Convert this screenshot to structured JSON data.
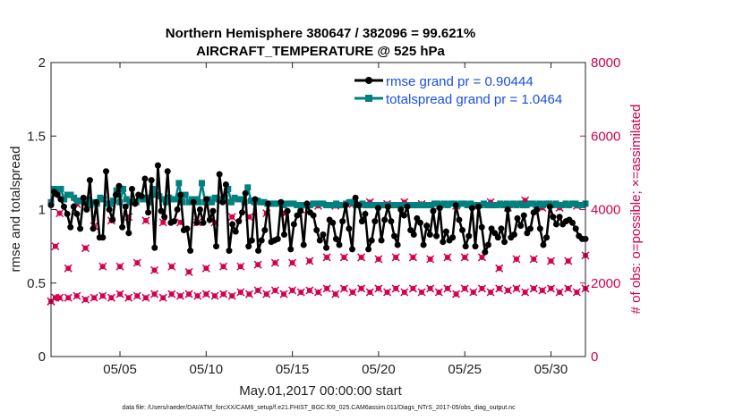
{
  "chart_data": {
    "type": "line",
    "title_line1": "Northern Hemisphere 380647 / 382096 = 99.621%",
    "title_line2": "AIRCRAFT_TEMPERATURE @ 525 hPa",
    "xlabel": "May.01,2017 00:00:00 start",
    "ylabel_left": "rmse and totalspread",
    "ylabel_right": "# of obs: o=possible; ×=assimilated",
    "footnote": "data file: /Users/raeder/DAI/ATM_forcXX/CAM6_setup/f.e21.FHIST_BGC.f09_025.CAM6assim.011/Diags_NTrS_2017-05/obs_diag_output.nc",
    "xlim": [
      1,
      32
    ],
    "ylim_left": [
      0,
      2
    ],
    "ylim_right": [
      0,
      8000
    ],
    "xticks": [
      5,
      10,
      15,
      20,
      25,
      30
    ],
    "xtick_labels": [
      "05/05",
      "05/10",
      "05/15",
      "05/20",
      "05/25",
      "05/30"
    ],
    "yticks_left": [
      0,
      0.5,
      1,
      1.5,
      2
    ],
    "ytick_labels_left": [
      "0",
      "0.5",
      "1",
      "1.5",
      "2"
    ],
    "yticks_right": [
      0,
      2000,
      4000,
      6000,
      8000
    ],
    "ytick_labels_right": [
      "0",
      "2000",
      "4000",
      "6000",
      "8000"
    ],
    "colors": {
      "rmse": "#000000",
      "spread": "#00807f",
      "obs": "#d4004f",
      "legend_text": "#1a4fe0",
      "right_axis": "#d0004e"
    },
    "series": [
      {
        "name": "rmse grand pr = 0.90444",
        "axis": "left",
        "values": [
          1.03,
          1.12,
          1.1,
          1.07,
          1.02,
          0.97,
          0.88,
          1.02,
          0.97,
          0.87,
          1.08,
          1.0,
          1.2,
          0.87,
          1.05,
          0.81,
          0.81,
          1.26,
          1.0,
          0.93,
          1.1,
          1.16,
          0.88,
          1.02,
          0.84,
          1.14,
          1.04,
          1.1,
          1.09,
          1.21,
          0.98,
          1.2,
          0.74,
          1.3,
          0.99,
          0.95,
          1.26,
          0.91,
          0.92,
          1.0,
          1.1,
          0.86,
          0.87,
          0.72,
          1.05,
          0.91,
          1.0,
          0.91,
          1.07,
          0.93,
          0.99,
          0.75,
          1.24,
          1.05,
          1.17,
          0.72,
          0.9,
          0.85,
          0.92,
          0.98,
          1.11,
          0.75,
          0.79,
          1.07,
          0.72,
          0.79,
          0.86,
          1.04,
          0.78,
          0.79,
          0.8,
          1.05,
          0.83,
          0.99,
          0.73,
          0.9,
          0.96,
          0.99,
          0.76,
          1.04,
          0.98,
          0.96,
          0.86,
          0.79,
          0.83,
          0.74,
          0.93,
          0.91,
          0.8,
          0.76,
          0.92,
          1.03,
          0.87,
          0.73,
          1.08,
          1.03,
          0.92,
          0.97,
          0.73,
          0.79,
          0.92,
          1.01,
          0.79,
          0.93,
          1.02,
          0.92,
          0.82,
          0.76,
          1.0,
          0.96,
          1.02,
          0.86,
          0.83,
          0.94,
          0.91,
          0.76,
          0.89,
          0.83,
          0.99,
          0.82,
          1.01,
          0.78,
          0.85,
          0.79,
          0.81,
          1.03,
          0.93,
          0.86,
          0.75,
          0.82,
          1.01,
          0.75,
          1.02,
          0.88,
          0.71,
          0.76,
          0.87,
          0.84,
          0.81,
          0.87,
          0.78,
          1.0,
          0.81,
          0.83,
          0.94,
          0.89,
          0.96,
          0.84,
          0.87,
          0.98,
          1.0,
          0.87,
          0.76,
          0.81,
          1.02,
          0.95,
          0.9,
          0.95,
          0.9,
          0.92,
          0.93,
          0.91,
          0.87,
          0.82,
          0.8,
          0.8
        ]
      },
      {
        "name": "totalspread grand pr = 1.0464",
        "axis": "left",
        "values": [
          1.05,
          1.14,
          1.13,
          1.14,
          1.07,
          1.1,
          1.1,
          1.08,
          1.06,
          1.06,
          1.05,
          1.07,
          1.03,
          1.05,
          1.04,
          1.08,
          1.07,
          1.04,
          1.04,
          1.06,
          1.13,
          1.05,
          1.14,
          1.07,
          1.05,
          1.05,
          1.05,
          1.09,
          1.07,
          1.08,
          1.05,
          1.14,
          1.1,
          1.09,
          1.07,
          1.05,
          1.08,
          1.07,
          1.07,
          1.18,
          1.05,
          1.1,
          1.05,
          1.07,
          1.07,
          1.05,
          1.18,
          1.05,
          1.07,
          1.05,
          1.08,
          1.07,
          1.06,
          1.08,
          1.14,
          1.05,
          1.08,
          1.07,
          1.07,
          1.05,
          1.15,
          1.06,
          1.05,
          1.06,
          1.05,
          1.05,
          1.04,
          1.04,
          1.04,
          1.04,
          1.04,
          1.03,
          1.04,
          1.04,
          1.04,
          1.03,
          1.03,
          1.03,
          1.03,
          1.03,
          1.04,
          1.04,
          1.04,
          1.04,
          1.03,
          1.03,
          1.03,
          1.04,
          1.03,
          1.03,
          1.04,
          1.05,
          1.05,
          1.03,
          1.03,
          1.04,
          1.03,
          1.03,
          1.03,
          1.03,
          1.03,
          1.03,
          1.03,
          1.03,
          1.03,
          1.03,
          1.03,
          1.03,
          1.03,
          1.03,
          1.03,
          1.03,
          1.03,
          1.03,
          1.03,
          1.03,
          1.03,
          1.04,
          1.04,
          1.03,
          1.04,
          1.03,
          1.04,
          1.04,
          1.03,
          1.04,
          1.04,
          1.03,
          1.04,
          1.03,
          1.03,
          1.03,
          1.04,
          1.03,
          1.03,
          1.03,
          1.03,
          1.04,
          1.03,
          1.04,
          1.03,
          1.04,
          1.03,
          1.04,
          1.03,
          1.03,
          1.04,
          1.04,
          1.03,
          1.04,
          1.03,
          1.04,
          1.04,
          1.03,
          1.04,
          1.03,
          1.03,
          1.04,
          1.03,
          1.04,
          1.04,
          1.03,
          1.03,
          1.04
        ]
      },
      {
        "name": "obs possible",
        "axis": "right",
        "x": [
          1.0,
          1.25,
          1.5,
          2.0,
          2.5,
          3.0,
          3.5,
          4.0,
          4.5,
          5.0,
          5.5,
          6.0,
          6.5,
          7.0,
          7.5,
          8.0,
          8.5,
          9.0,
          9.5,
          10.0,
          10.5,
          11.0,
          11.5,
          12.0,
          12.5,
          13.0,
          13.5,
          14.0,
          14.5,
          15.0,
          15.5,
          16.0,
          16.5,
          17.0,
          17.5,
          18.0,
          18.5,
          19.0,
          19.5,
          20.0,
          20.5,
          21.0,
          21.5,
          22.0,
          22.5,
          23.0,
          23.5,
          24.0,
          24.5,
          25.0,
          25.5,
          26.0,
          26.5,
          27.0,
          27.5,
          28.0,
          28.5,
          29.0,
          29.5,
          30.0,
          30.5,
          31.0,
          31.5,
          32.0
        ],
        "values": [
          1500,
          3000,
          3900,
          2400,
          4150,
          2950,
          3550,
          2450,
          3700,
          2450,
          3800,
          2550,
          3700,
          2350,
          3650,
          2450,
          3650,
          2300,
          3650,
          2400,
          3650,
          2450,
          3800,
          2450,
          3800,
          2500,
          3900,
          2550,
          3900,
          2550,
          4000,
          2600,
          4100,
          2700,
          4100,
          2700,
          4150,
          2700,
          4200,
          2650,
          4150,
          2700,
          4200,
          2700,
          4150,
          2650,
          4100,
          2700,
          4100,
          2700,
          4100,
          2700,
          4200,
          2400,
          4050,
          2650,
          4250,
          2650,
          4050,
          2600,
          4050,
          2600,
          4100,
          2750
        ]
      },
      {
        "name": "obs assimilated",
        "axis": "right",
        "x": [
          1.0,
          1.25,
          1.5,
          2.0,
          2.5,
          3.0,
          3.5,
          4.0,
          4.5,
          5.0,
          5.5,
          6.0,
          6.5,
          7.0,
          7.5,
          8.0,
          8.5,
          9.0,
          9.5,
          10.0,
          10.5,
          11.0,
          11.5,
          12.0,
          12.5,
          13.0,
          13.5,
          14.0,
          14.5,
          15.0,
          15.5,
          16.0,
          16.5,
          17.0,
          17.5,
          18.0,
          18.5,
          19.0,
          19.5,
          20.0,
          20.5,
          21.0,
          21.5,
          22.0,
          22.5,
          23.0,
          23.5,
          24.0,
          24.5,
          25.0,
          25.5,
          26.0,
          26.5,
          27.0,
          27.5,
          28.0,
          28.5,
          29.0,
          29.5,
          30.0,
          30.5,
          31.0,
          31.5,
          32.0
        ],
        "values": [
          1500,
          1600,
          1600,
          1600,
          1650,
          1550,
          1600,
          1650,
          1600,
          1700,
          1600,
          1650,
          1600,
          1700,
          1600,
          1700,
          1650,
          1700,
          1650,
          1700,
          1650,
          1700,
          1650,
          1750,
          1700,
          1800,
          1700,
          1800,
          1700,
          1800,
          1750,
          1800,
          1750,
          1850,
          1700,
          1850,
          1750,
          1850,
          1750,
          1850,
          1750,
          1850,
          1750,
          1850,
          1750,
          1850,
          1750,
          1850,
          1700,
          1850,
          1750,
          1850,
          1750,
          1850,
          1800,
          1850,
          1750,
          1850,
          1800,
          1850,
          1750,
          1850,
          1750,
          1850
        ]
      }
    ]
  }
}
